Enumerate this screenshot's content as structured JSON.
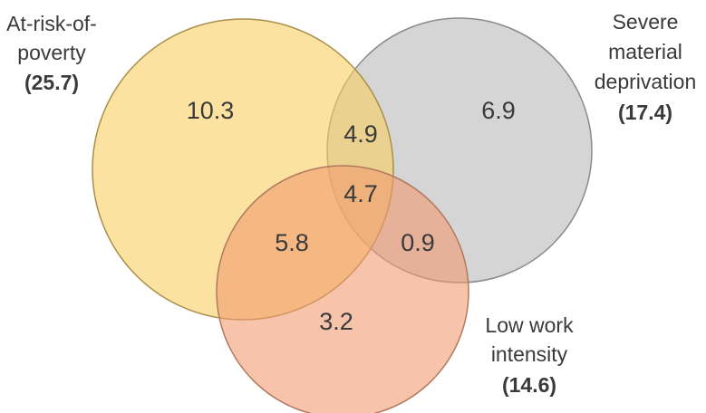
{
  "sets": [
    {
      "id": "poverty",
      "label_lines": [
        "At-risk-of-",
        "poverty"
      ],
      "total": "(25.7)",
      "fill": "#f9cf62",
      "fill_opacity": 0.6,
      "stroke": "#aa8e4a"
    },
    {
      "id": "deprivation",
      "label_lines": [
        "Severe",
        "material",
        "deprivation"
      ],
      "total": "(17.4)",
      "fill": "#b3b3b3",
      "fill_opacity": 0.55,
      "stroke": "#8a8a8a"
    },
    {
      "id": "work",
      "label_lines": [
        "Low work",
        "intensity"
      ],
      "total": "(14.6)",
      "fill": "#f29a6e",
      "fill_opacity": 0.58,
      "stroke": "#b07a5e"
    }
  ],
  "regions": {
    "poverty_only": "10.3",
    "deprivation_only": "6.9",
    "work_only": "3.2",
    "poverty_deprivation": "4.9",
    "all_three": "4.7",
    "poverty_work": "5.8",
    "deprivation_work": "0.9"
  }
}
